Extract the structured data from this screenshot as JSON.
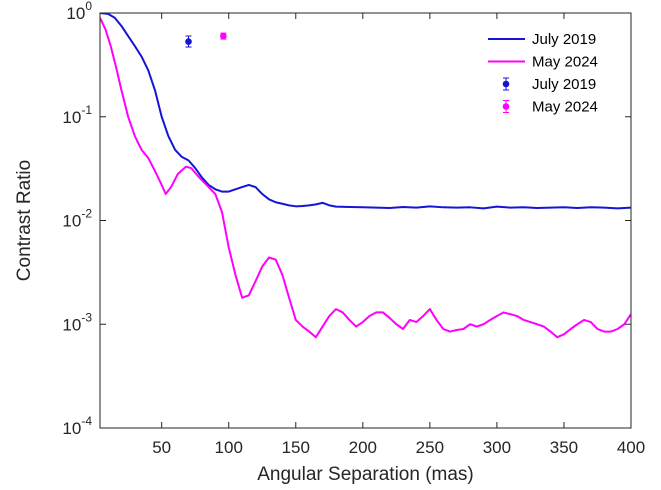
{
  "chart_data": {
    "type": "line",
    "xlabel": "Angular Separation (mas)",
    "ylabel": "Contrast Ratio",
    "xlim": [
      4,
      400
    ],
    "ylim": [
      0.0001,
      1
    ],
    "yscale": "log",
    "grid": false,
    "legend_position": "top-right",
    "x_ticks": [
      50,
      100,
      150,
      200,
      250,
      300,
      350,
      400
    ],
    "x_tick_labels": [
      "50",
      "100",
      "150",
      "200",
      "250",
      "300",
      "350",
      "400"
    ],
    "y_ticks": [
      {
        "value": 1,
        "base": "10",
        "exp": "0"
      },
      {
        "value": 0.1,
        "base": "10",
        "exp": "-1"
      },
      {
        "value": 0.01,
        "base": "10",
        "exp": "-2"
      },
      {
        "value": 0.001,
        "base": "10",
        "exp": "-3"
      },
      {
        "value": 0.0001,
        "base": "10",
        "exp": "-4"
      }
    ],
    "series": [
      {
        "name": "July 2019",
        "color": "#1515d6",
        "style": "line",
        "x": [
          4,
          10,
          15,
          20,
          25,
          30,
          35,
          40,
          45,
          50,
          55,
          60,
          65,
          70,
          75,
          80,
          85,
          90,
          95,
          100,
          105,
          110,
          115,
          120,
          125,
          130,
          135,
          140,
          145,
          150,
          155,
          160,
          165,
          170,
          175,
          180,
          190,
          200,
          210,
          220,
          230,
          240,
          250,
          260,
          270,
          280,
          290,
          300,
          310,
          320,
          330,
          340,
          350,
          360,
          370,
          380,
          390,
          400
        ],
        "y": [
          1.0,
          0.98,
          0.9,
          0.75,
          0.6,
          0.48,
          0.38,
          0.28,
          0.18,
          0.1,
          0.065,
          0.048,
          0.041,
          0.038,
          0.032,
          0.026,
          0.022,
          0.02,
          0.019,
          0.019,
          0.02,
          0.021,
          0.022,
          0.021,
          0.018,
          0.016,
          0.015,
          0.0145,
          0.014,
          0.0137,
          0.0138,
          0.014,
          0.0143,
          0.0148,
          0.014,
          0.0136,
          0.0135,
          0.0134,
          0.0133,
          0.0132,
          0.0135,
          0.0133,
          0.0137,
          0.0134,
          0.0133,
          0.0134,
          0.0131,
          0.0136,
          0.0133,
          0.0134,
          0.0132,
          0.0133,
          0.0134,
          0.0132,
          0.0134,
          0.0133,
          0.0131,
          0.0133
        ]
      },
      {
        "name": "May 2024",
        "color": "#ff00ff",
        "style": "line",
        "x": [
          4,
          8,
          12,
          16,
          20,
          25,
          30,
          35,
          40,
          45,
          50,
          53,
          57,
          62,
          68,
          72,
          78,
          85,
          90,
          95,
          100,
          105,
          110,
          115,
          120,
          125,
          130,
          135,
          140,
          145,
          150,
          155,
          160,
          165,
          170,
          175,
          180,
          185,
          190,
          195,
          200,
          205,
          210,
          215,
          220,
          225,
          230,
          235,
          240,
          245,
          250,
          255,
          260,
          265,
          270,
          275,
          280,
          285,
          290,
          295,
          300,
          305,
          310,
          315,
          320,
          325,
          330,
          335,
          340,
          345,
          350,
          355,
          360,
          365,
          370,
          375,
          380,
          385,
          390,
          395,
          400
        ],
        "y": [
          0.9,
          0.7,
          0.48,
          0.3,
          0.18,
          0.1,
          0.065,
          0.048,
          0.04,
          0.03,
          0.022,
          0.018,
          0.021,
          0.028,
          0.033,
          0.032,
          0.026,
          0.021,
          0.018,
          0.012,
          0.0055,
          0.003,
          0.0018,
          0.0019,
          0.0026,
          0.0036,
          0.0044,
          0.0042,
          0.003,
          0.0018,
          0.0011,
          0.00095,
          0.00085,
          0.00075,
          0.00095,
          0.0012,
          0.0014,
          0.0013,
          0.0011,
          0.00095,
          0.00105,
          0.0012,
          0.0013,
          0.0013,
          0.00115,
          0.001,
          0.0009,
          0.0011,
          0.00105,
          0.0012,
          0.0014,
          0.0011,
          0.0009,
          0.00085,
          0.00088,
          0.0009,
          0.001,
          0.00095,
          0.001,
          0.0011,
          0.0012,
          0.0013,
          0.00125,
          0.0012,
          0.0011,
          0.00105,
          0.001,
          0.00095,
          0.00085,
          0.00075,
          0.0008,
          0.0009,
          0.001,
          0.0011,
          0.00105,
          0.0009,
          0.00085,
          0.00085,
          0.0009,
          0.001,
          0.00125
        ]
      },
      {
        "name": "July 2019",
        "color": "#1515d6",
        "style": "errorbar",
        "points": [
          {
            "x": 70,
            "y": 0.53,
            "ylow": 0.47,
            "yhigh": 0.6
          }
        ]
      },
      {
        "name": "May 2024",
        "color": "#ff00ff",
        "style": "errorbar",
        "points": [
          {
            "x": 96,
            "y": 0.6,
            "ylow": 0.56,
            "yhigh": 0.64
          }
        ]
      }
    ]
  }
}
